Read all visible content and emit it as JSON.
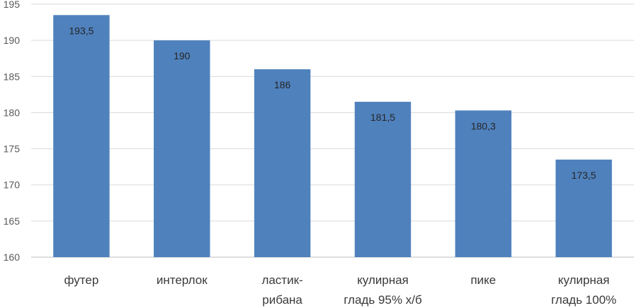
{
  "chart_data": {
    "type": "bar",
    "categories": [
      [
        "футер"
      ],
      [
        "интерлок"
      ],
      [
        "ластик-",
        "рибана"
      ],
      [
        "кулирная",
        "гладь 95% х/б"
      ],
      [
        "пике"
      ],
      [
        "кулирная",
        "гладь 100%"
      ]
    ],
    "values": [
      193.5,
      190,
      186,
      181.5,
      180.3,
      173.5
    ],
    "value_labels": [
      "193,5",
      "190",
      "186",
      "181,5",
      "180,3",
      "173,5"
    ],
    "ylim": [
      160,
      195
    ],
    "yticks": [
      160,
      165,
      170,
      175,
      180,
      185,
      190,
      195
    ],
    "title": "",
    "xlabel": "",
    "ylabel": "",
    "grid": true,
    "bar_color": "#4f81bd"
  }
}
